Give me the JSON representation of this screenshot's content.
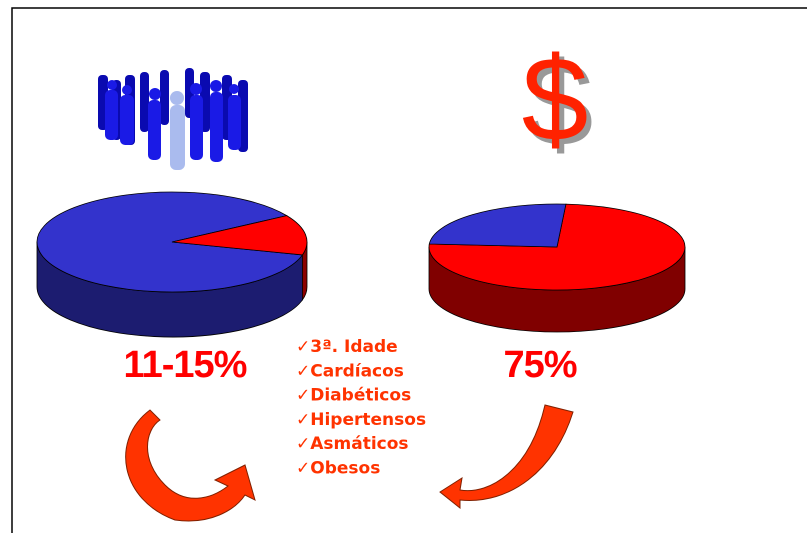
{
  "chart_data": [
    {
      "type": "pie",
      "values": [
        87,
        13
      ],
      "colors": [
        "#3333cc",
        "#ff0000"
      ],
      "side_colors": [
        "#1c1c70",
        "#8b0000"
      ],
      "start_angle": 15,
      "annotation": "11-15%"
    },
    {
      "type": "pie",
      "values": [
        75,
        25
      ],
      "colors": [
        "#ff0000",
        "#3333cc"
      ],
      "side_colors": [
        "#800000",
        "#1c1c70"
      ],
      "start_angle": -86,
      "annotation": "75%"
    }
  ],
  "icon": "$",
  "list": {
    "items": [
      "✓3ª. Idade",
      "✓Cardíacos",
      "✓Diabéticos",
      "✓Hipertensos",
      "✓Asmáticos",
      "✓Obesos"
    ]
  }
}
